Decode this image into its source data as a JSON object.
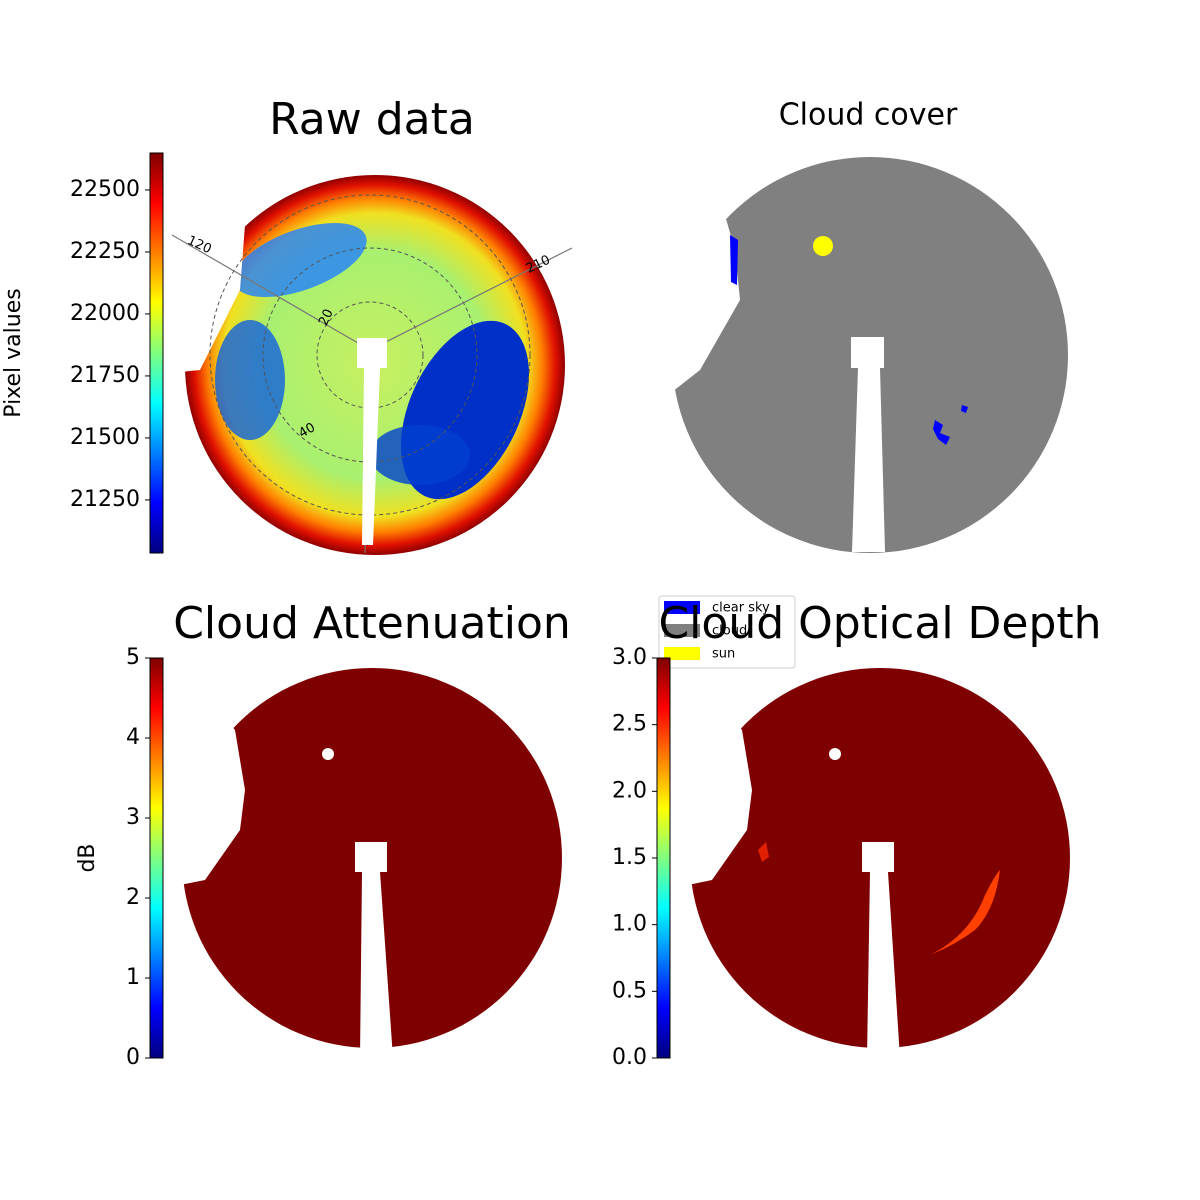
{
  "chart_data": [
    {
      "type": "image",
      "title": "Raw data",
      "colorbar": {
        "label": "Pixel values",
        "lim": [
          21036,
          22649
        ],
        "ticks": [
          21250,
          21500,
          21750,
          22000,
          22250,
          22500
        ]
      },
      "polar_labels": [
        "120",
        "210",
        "20",
        "40"
      ]
    },
    {
      "type": "image",
      "title": "Cloud cover",
      "legend": [
        {
          "name": "clear sky",
          "color": "#0000ff"
        },
        {
          "name": "cloud",
          "color": "#808080"
        },
        {
          "name": "sun",
          "color": "#ffff00"
        }
      ]
    },
    {
      "type": "image",
      "title": "Cloud Attenuation",
      "colorbar": {
        "label": "dB",
        "lim": [
          0,
          5
        ],
        "ticks": [
          0,
          1,
          2,
          3,
          4,
          5
        ]
      }
    },
    {
      "type": "image",
      "title": "Cloud Optical Depth",
      "colorbar": {
        "lim": [
          0,
          3
        ],
        "ticks": [
          {
            "value": 0,
            "label": "0.0"
          },
          {
            "value": 0.5,
            "label": "0.5"
          },
          {
            "value": 1,
            "label": "1.0"
          },
          {
            "value": 1.5,
            "label": "1.5"
          },
          {
            "value": 2,
            "label": "2.0"
          },
          {
            "value": 2.5,
            "label": "2.5"
          },
          {
            "value": 3,
            "label": "3.0"
          }
        ]
      }
    }
  ]
}
